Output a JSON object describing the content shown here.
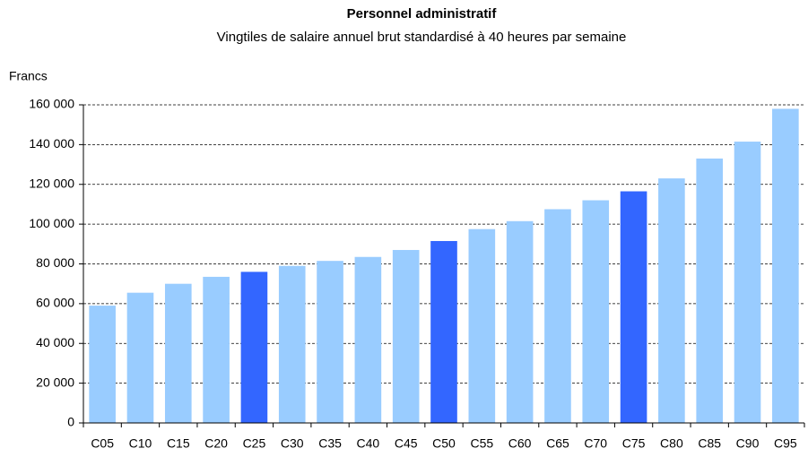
{
  "chart_data": {
    "type": "bar",
    "title": "Personnel administratif",
    "subtitle": "Vingtiles de salaire annuel brut standardisé à 40 heures par semaine",
    "y_label": "Francs",
    "categories": [
      "C05",
      "C10",
      "C15",
      "C20",
      "C25",
      "C30",
      "C35",
      "C40",
      "C45",
      "C50",
      "C55",
      "C60",
      "C65",
      "C70",
      "C75",
      "C80",
      "C85",
      "C90",
      "C95"
    ],
    "values": [
      59000,
      65500,
      70000,
      73500,
      76000,
      79000,
      81500,
      83500,
      87000,
      91500,
      97500,
      101500,
      107500,
      112000,
      116500,
      123000,
      133000,
      141500,
      158000
    ],
    "colors": [
      "#99ccff",
      "#99ccff",
      "#99ccff",
      "#99ccff",
      "#3366ff",
      "#99ccff",
      "#99ccff",
      "#99ccff",
      "#99ccff",
      "#3366ff",
      "#99ccff",
      "#99ccff",
      "#99ccff",
      "#99ccff",
      "#3366ff",
      "#99ccff",
      "#99ccff",
      "#99ccff",
      "#99ccff"
    ],
    "ylim": [
      0,
      160000
    ],
    "yticks": [
      0,
      {
        "value": 20000,
        "label": "20 000"
      },
      {
        "value": 40000,
        "label": "40 000"
      },
      {
        "value": 60000,
        "label": "60 000"
      },
      {
        "value": 80000,
        "label": "80 000"
      },
      {
        "value": 100000,
        "label": "100 000"
      },
      {
        "value": 120000,
        "label": "120 000"
      },
      {
        "value": 140000,
        "label": "140 000"
      },
      {
        "value": 160000,
        "label": "160 000"
      }
    ],
    "grid": true
  }
}
